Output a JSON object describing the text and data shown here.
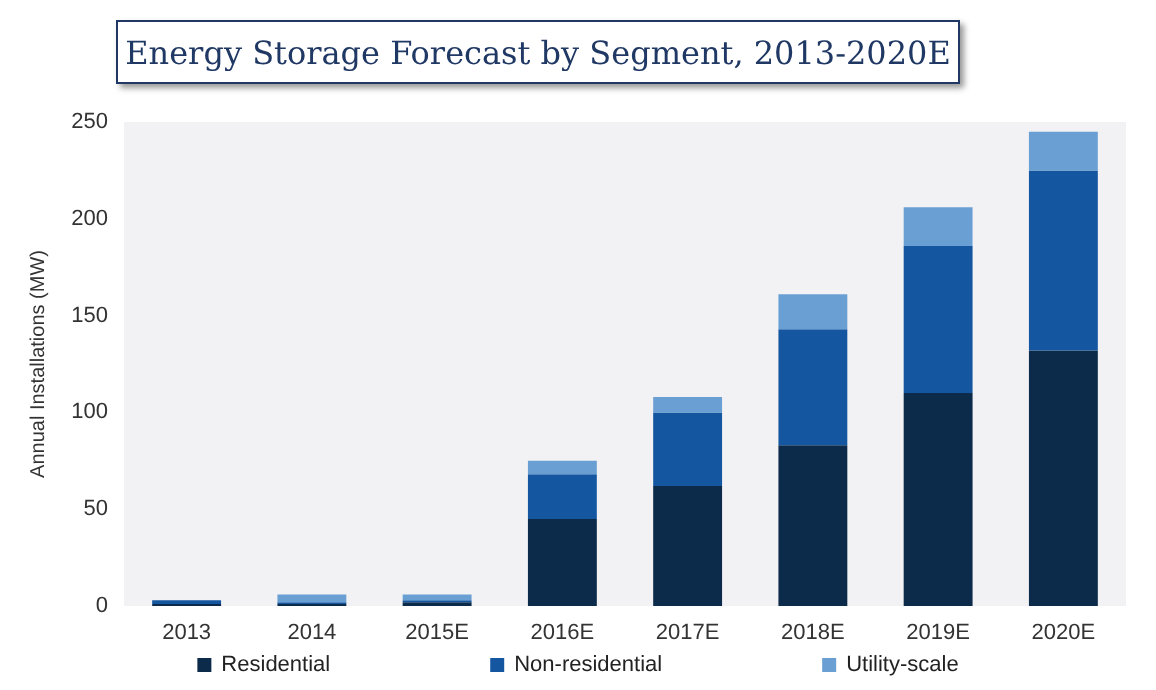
{
  "chart_data": {
    "type": "bar",
    "title": "Energy Storage  Forecast by Segment, 2013-2020E",
    "ylabel": "Annual Installations (MW)",
    "categories": [
      "2013",
      "2014",
      "2015E",
      "2016E",
      "2017E",
      "2018E",
      "2019E",
      "2020E"
    ],
    "stacked": true,
    "series": [
      {
        "name": "Residential",
        "color": "#0c2a4a",
        "values": [
          1,
          1,
          2,
          45,
          62,
          83,
          110,
          132
        ]
      },
      {
        "name": "Non-residential",
        "color": "#1457a0",
        "values": [
          2,
          1,
          1,
          23,
          38,
          60,
          76,
          93
        ]
      },
      {
        "name": "Utility-scale",
        "color": "#6a9fd4",
        "values": [
          0,
          4,
          3,
          7,
          8,
          18,
          20,
          20
        ]
      }
    ],
    "ylim": [
      0,
      250
    ],
    "yticks": [
      0,
      50,
      100,
      150,
      200,
      250
    ],
    "grid": false,
    "legend": "bottom"
  }
}
